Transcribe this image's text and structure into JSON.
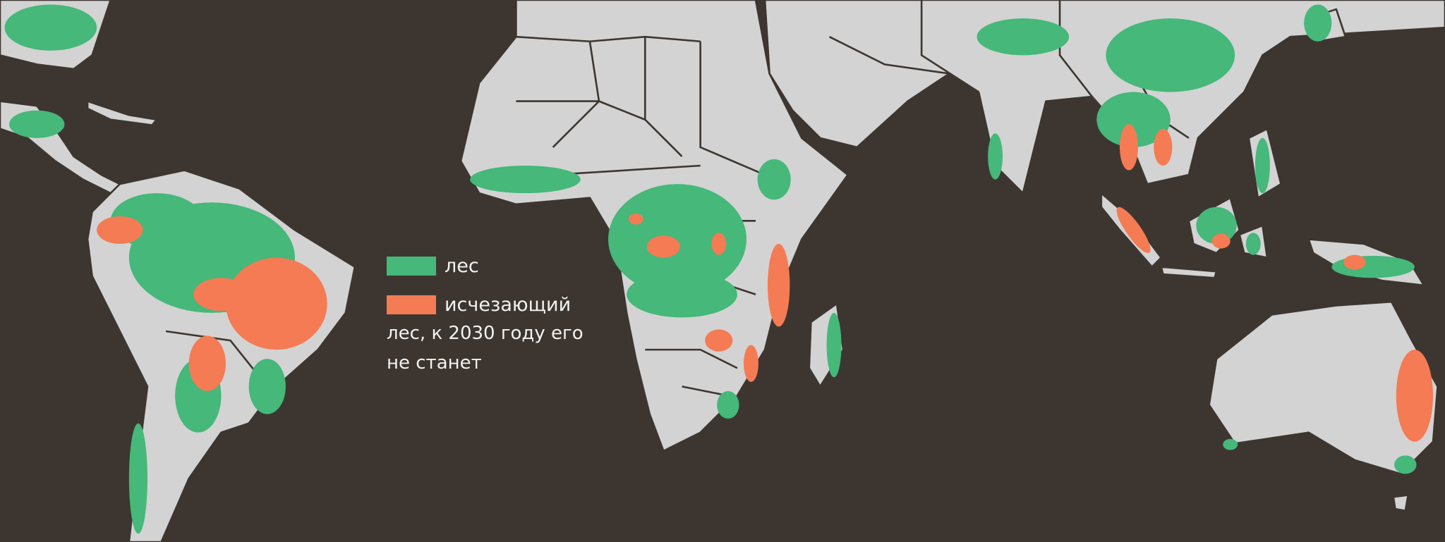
{
  "colors": {
    "background": "#3d3630",
    "land": "#d3d3d3",
    "forest": "#45b87a",
    "vanishing_forest": "#f47b53"
  },
  "legend": {
    "forest_label": "лес",
    "vanishing_label": "исчезающий",
    "vanishing_description": "лес, к 2030 году его не станет"
  }
}
